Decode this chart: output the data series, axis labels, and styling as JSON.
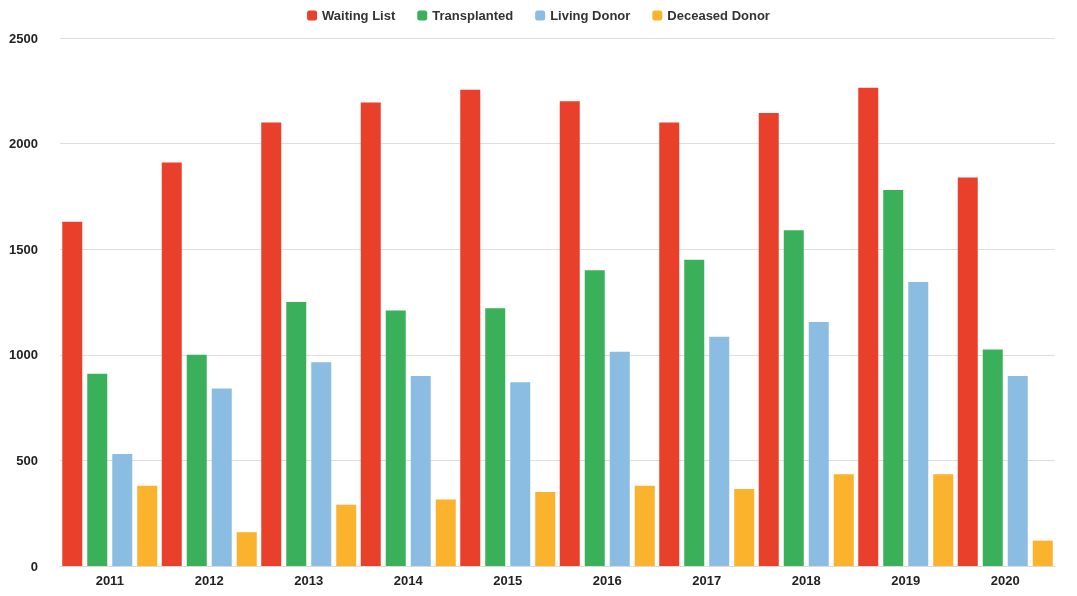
{
  "chart_data": {
    "type": "bar",
    "categories": [
      "2011",
      "2012",
      "2013",
      "2014",
      "2015",
      "2016",
      "2017",
      "2018",
      "2019",
      "2020"
    ],
    "series": [
      {
        "name": "Waiting List",
        "color": "#e8402a",
        "values": [
          1630,
          1910,
          2100,
          2195,
          2255,
          2200,
          2100,
          2145,
          2265,
          1840
        ]
      },
      {
        "name": "Transplanted",
        "color": "#3bb05a",
        "values": [
          910,
          1000,
          1250,
          1210,
          1220,
          1400,
          1450,
          1590,
          1780,
          1025
        ]
      },
      {
        "name": "Living Donor",
        "color": "#8bbde2",
        "values": [
          530,
          840,
          965,
          900,
          870,
          1015,
          1085,
          1155,
          1345,
          900
        ]
      },
      {
        "name": "Deceased Donor",
        "color": "#fbb22c",
        "values": [
          380,
          160,
          290,
          315,
          350,
          380,
          365,
          435,
          435,
          120
        ]
      }
    ],
    "ylim": [
      0,
      2500
    ],
    "yticks": [
      0,
      500,
      1000,
      1500,
      2000,
      2500
    ],
    "grid": "y",
    "legend": "top"
  }
}
